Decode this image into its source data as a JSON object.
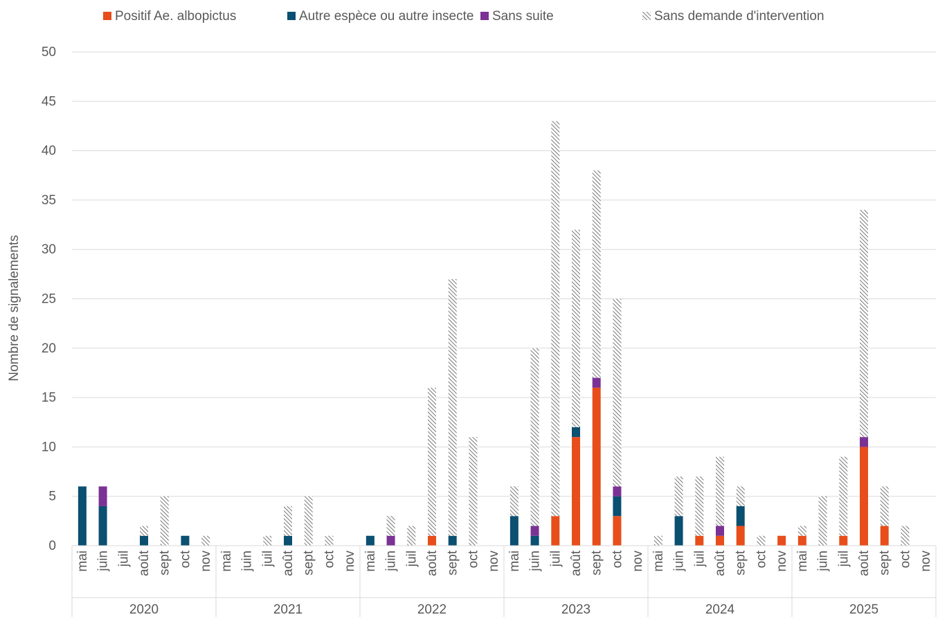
{
  "chart_data": {
    "type": "bar",
    "stacked": true,
    "title": "",
    "xlabel": "",
    "ylabel": "Nombre de signalements",
    "ylim": [
      0,
      50
    ],
    "yticks": [
      0,
      5,
      10,
      15,
      20,
      25,
      30,
      35,
      40,
      45,
      50
    ],
    "grid": true,
    "legend_position": "top",
    "years": [
      "2020",
      "2021",
      "2022",
      "2023",
      "2024",
      "2025"
    ],
    "months": [
      "mai",
      "juin",
      "juil",
      "août",
      "sept",
      "oct",
      "nov"
    ],
    "series": [
      {
        "name": "Positif Ae. albopictus",
        "color": "#e84e1b",
        "pattern": "solid",
        "values": [
          0,
          0,
          0,
          0,
          0,
          0,
          0,
          0,
          0,
          0,
          0,
          0,
          0,
          0,
          0,
          0,
          0,
          1,
          0,
          0,
          0,
          0,
          0,
          3,
          11,
          16,
          3,
          0,
          0,
          0,
          1,
          1,
          2,
          0,
          1,
          1,
          0,
          1,
          10,
          2,
          0,
          0
        ]
      },
      {
        "name": "Autre espèce ou autre insecte",
        "color": "#0b4f71",
        "pattern": "solid",
        "values": [
          6,
          4,
          0,
          1,
          0,
          1,
          0,
          0,
          0,
          0,
          1,
          0,
          0,
          0,
          1,
          0,
          0,
          0,
          1,
          0,
          0,
          3,
          1,
          0,
          1,
          0,
          2,
          0,
          0,
          3,
          0,
          0,
          2,
          0,
          0,
          0,
          0,
          0,
          0,
          0,
          0,
          0
        ]
      },
      {
        "name": "Sans suite",
        "color": "#7b3295",
        "pattern": "solid",
        "values": [
          0,
          2,
          0,
          0,
          0,
          0,
          0,
          0,
          0,
          0,
          0,
          0,
          0,
          0,
          0,
          1,
          0,
          0,
          0,
          0,
          0,
          0,
          1,
          0,
          0,
          1,
          1,
          0,
          0,
          0,
          0,
          1,
          0,
          0,
          0,
          0,
          0,
          0,
          1,
          0,
          0,
          0
        ]
      },
      {
        "name": "Sans demande d'intervention",
        "color": "#555555",
        "pattern": "hatch",
        "values": [
          0,
          0,
          0,
          1,
          5,
          0,
          1,
          0,
          0,
          1,
          3,
          5,
          1,
          0,
          0,
          2,
          2,
          15,
          26,
          11,
          0,
          3,
          18,
          40,
          20,
          21,
          19,
          0,
          1,
          4,
          6,
          7,
          2,
          1,
          0,
          1,
          5,
          8,
          23,
          4,
          2,
          0
        ]
      }
    ]
  }
}
